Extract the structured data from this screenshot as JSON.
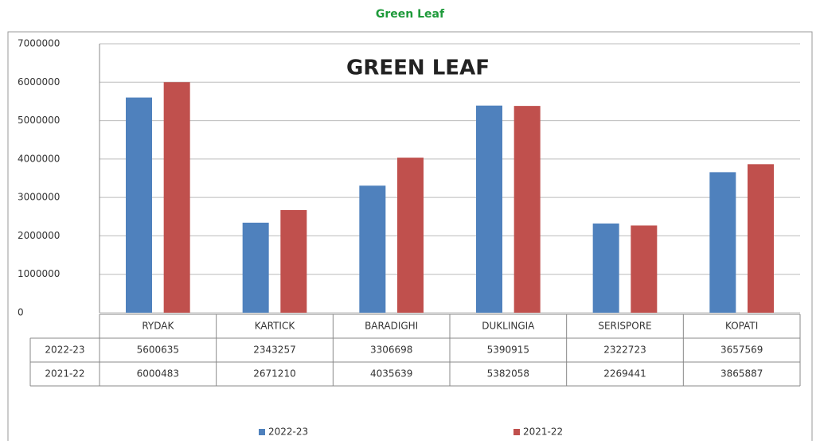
{
  "page_title": "Green Leaf",
  "chart_data": {
    "type": "bar",
    "title": "GREEN LEAF",
    "categories": [
      "RYDAK",
      "KARTICK",
      "BARADIGHI",
      "DUKLINGIA",
      "SERISPORE",
      "KOPATI"
    ],
    "series": [
      {
        "name": "2022-23",
        "color": "#4f81bd",
        "values": [
          5600635,
          2343257,
          3306698,
          5390915,
          2322723,
          3657569
        ]
      },
      {
        "name": "2021-22",
        "color": "#c0504d",
        "values": [
          6000483,
          2671210,
          4035639,
          5382058,
          2269441,
          3865887
        ]
      }
    ],
    "ylim": [
      0,
      7000000
    ],
    "yticks": [
      0,
      1000000,
      2000000,
      3000000,
      4000000,
      5000000,
      6000000,
      7000000
    ],
    "grid": true,
    "legend": "bottom",
    "data_table": true
  }
}
